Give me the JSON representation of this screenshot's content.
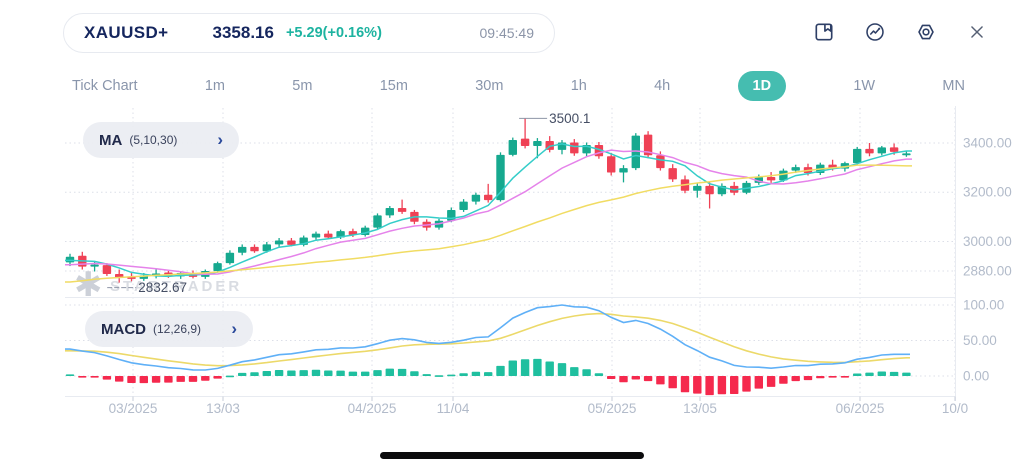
{
  "header": {
    "symbol": "XAUUSD+",
    "price": "3358.16",
    "change": "+5.29(+0.16%)",
    "time": "09:45:49"
  },
  "timeframes": [
    {
      "label": "Tick Chart",
      "active": false
    },
    {
      "label": "1m",
      "active": false
    },
    {
      "label": "5m",
      "active": false
    },
    {
      "label": "15m",
      "active": false
    },
    {
      "label": "30m",
      "active": false
    },
    {
      "label": "1h",
      "active": false
    },
    {
      "label": "4h",
      "active": false
    },
    {
      "label": "1D",
      "active": true
    },
    {
      "label": "1W",
      "active": false
    },
    {
      "label": "MN",
      "active": false
    }
  ],
  "indicators": {
    "ma": {
      "name": "MA",
      "params": "(5,10,30)",
      "periods": [
        5,
        10,
        30
      ],
      "colors": [
        "#35cdc9",
        "#e583ea",
        "#f1dc63"
      ]
    },
    "macd": {
      "name": "MACD",
      "params": "(12,26,9)",
      "fast": 12,
      "slow": 26,
      "signal": 9,
      "line_color": "#5fb0f7",
      "signal_color": "#ecd969",
      "hist_up": "#1fbf9f",
      "hist_down": "#f5294d"
    }
  },
  "watermark": {
    "text": "STARTRADER"
  },
  "colors": {
    "accent_teal": "#1db3a0",
    "active_tab": "#45bdb0",
    "navy": "#15265e"
  },
  "chart_data": {
    "type": "candlestick",
    "symbol": "XAUUSD+",
    "timeframe": "1D",
    "up_color": "#16a98f",
    "down_color": "#ef4155",
    "y_axis": {
      "tick_labels": [
        "3400.00",
        "3200.00",
        "3000.00",
        "2880.00"
      ],
      "tick_values": [
        3400,
        3200,
        3000,
        2880
      ]
    },
    "macd_axis": {
      "tick_labels": [
        "100.00",
        "50.00",
        "0.00"
      ],
      "tick_values": [
        100,
        50,
        0
      ]
    },
    "x_axis": {
      "labels": [
        "03/2025",
        "13/03",
        "04/2025",
        "11/04",
        "05/2025",
        "13/05",
        "06/2025",
        "10/0"
      ],
      "positions": [
        133,
        223,
        372,
        453,
        612,
        700,
        860,
        955
      ]
    },
    "high_annotation": {
      "label": "3500.1",
      "value": 3500.1,
      "candle_index": 37
    },
    "low_annotation": {
      "label": "2832.67",
      "value": 2832.67,
      "candle_index": 4
    },
    "candles": [
      [
        2915,
        2950,
        2900,
        2938
      ],
      [
        2942,
        2958,
        2886,
        2898
      ],
      [
        2898,
        2918,
        2878,
        2906
      ],
      [
        2904,
        2912,
        2860,
        2868
      ],
      [
        2868,
        2886,
        2832.67,
        2852
      ],
      [
        2856,
        2878,
        2838,
        2848
      ],
      [
        2848,
        2872,
        2840,
        2862
      ],
      [
        2862,
        2886,
        2850,
        2870
      ],
      [
        2874,
        2884,
        2852,
        2858
      ],
      [
        2858,
        2880,
        2848,
        2872
      ],
      [
        2872,
        2882,
        2850,
        2856
      ],
      [
        2856,
        2886,
        2848,
        2880
      ],
      [
        2880,
        2918,
        2874,
        2912
      ],
      [
        2912,
        2964,
        2906,
        2954
      ],
      [
        2954,
        2988,
        2944,
        2978
      ],
      [
        2978,
        2988,
        2954,
        2960
      ],
      [
        2960,
        2998,
        2954,
        2988
      ],
      [
        2988,
        3014,
        2978,
        3004
      ],
      [
        3004,
        3014,
        2980,
        2986
      ],
      [
        2986,
        3024,
        2980,
        3016
      ],
      [
        3016,
        3040,
        3008,
        3032
      ],
      [
        3032,
        3044,
        3010,
        3016
      ],
      [
        3016,
        3048,
        3010,
        3042
      ],
      [
        3042,
        3052,
        3018,
        3026
      ],
      [
        3026,
        3064,
        3020,
        3056
      ],
      [
        3056,
        3114,
        3050,
        3106
      ],
      [
        3106,
        3144,
        3096,
        3136
      ],
      [
        3136,
        3170,
        3112,
        3120
      ],
      [
        3120,
        3128,
        3070,
        3080
      ],
      [
        3080,
        3090,
        3044,
        3056
      ],
      [
        3056,
        3092,
        3048,
        3084
      ],
      [
        3084,
        3138,
        3078,
        3128
      ],
      [
        3128,
        3172,
        3120,
        3162
      ],
      [
        3162,
        3198,
        3150,
        3190
      ],
      [
        3190,
        3234,
        3158,
        3168
      ],
      [
        3168,
        3362,
        3162,
        3352
      ],
      [
        3352,
        3422,
        3346,
        3412
      ],
      [
        3418,
        3500.1,
        3378,
        3388
      ],
      [
        3388,
        3420,
        3338,
        3408
      ],
      [
        3408,
        3428,
        3362,
        3372
      ],
      [
        3372,
        3412,
        3354,
        3402
      ],
      [
        3402,
        3416,
        3348,
        3358
      ],
      [
        3358,
        3402,
        3344,
        3392
      ],
      [
        3392,
        3404,
        3336,
        3346
      ],
      [
        3346,
        3360,
        3268,
        3280
      ],
      [
        3280,
        3310,
        3240,
        3298
      ],
      [
        3298,
        3440,
        3290,
        3430
      ],
      [
        3434,
        3448,
        3338,
        3350
      ],
      [
        3350,
        3366,
        3288,
        3298
      ],
      [
        3298,
        3314,
        3242,
        3252
      ],
      [
        3252,
        3268,
        3196,
        3206
      ],
      [
        3206,
        3238,
        3178,
        3226
      ],
      [
        3226,
        3240,
        3134,
        3192
      ],
      [
        3192,
        3236,
        3184,
        3226
      ],
      [
        3226,
        3242,
        3188,
        3198
      ],
      [
        3198,
        3246,
        3192,
        3238
      ],
      [
        3238,
        3272,
        3230,
        3262
      ],
      [
        3262,
        3282,
        3238,
        3248
      ],
      [
        3248,
        3296,
        3242,
        3288
      ],
      [
        3288,
        3312,
        3278,
        3302
      ],
      [
        3302,
        3316,
        3268,
        3278
      ],
      [
        3278,
        3320,
        3270,
        3312
      ],
      [
        3312,
        3332,
        3288,
        3296
      ],
      [
        3296,
        3324,
        3284,
        3318
      ],
      [
        3318,
        3384,
        3310,
        3376
      ],
      [
        3376,
        3400,
        3346,
        3358
      ],
      [
        3358,
        3388,
        3350,
        3382
      ],
      [
        3382,
        3398,
        3352,
        3364
      ],
      [
        3350,
        3368,
        3344,
        3358
      ]
    ]
  }
}
